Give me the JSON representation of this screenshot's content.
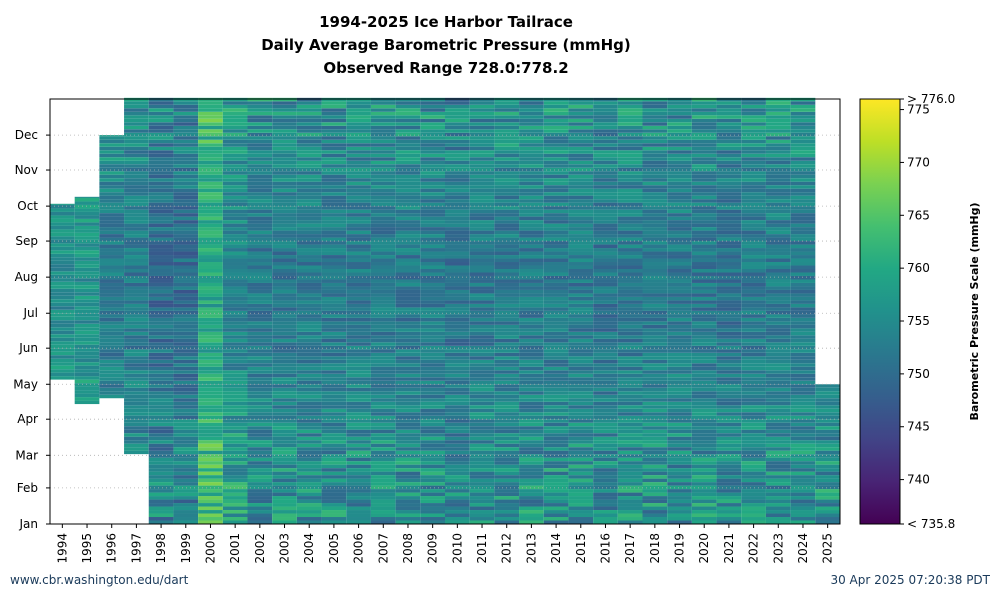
{
  "chart_data": {
    "type": "heatmap",
    "title": "1994-2025 Ice Harbor Tailrace",
    "subtitle": "Daily Average Barometric Pressure (mmHg)",
    "subtitle2": "Observed Range 728.0:778.2",
    "x_categories": [
      "1994",
      "1995",
      "1996",
      "1997",
      "1998",
      "1999",
      "2000",
      "2001",
      "2002",
      "2003",
      "2004",
      "2005",
      "2006",
      "2007",
      "2008",
      "2009",
      "2010",
      "2011",
      "2012",
      "2013",
      "2014",
      "2015",
      "2016",
      "2017",
      "2018",
      "2019",
      "2020",
      "2021",
      "2022",
      "2023",
      "2024",
      "2025"
    ],
    "y_ticks": [
      "Jan",
      "Feb",
      "Mar",
      "Apr",
      "May",
      "Jun",
      "Jul",
      "Aug",
      "Sep",
      "Oct",
      "Nov",
      "Dec"
    ],
    "y_range_days": [
      1,
      366
    ],
    "grid": "horizontal dotted at month ticks",
    "colormap": "viridis",
    "colorbar": {
      "label": "Barometric Pressure Scale (mmHg)",
      "vmin": 735.8,
      "vmax": 776.0,
      "ticks": [
        740,
        745,
        750,
        755,
        760,
        765,
        770,
        775
      ],
      "min_label": "< 735.8",
      "max_label": "> 776.0"
    },
    "data_coverage_doy": [
      {
        "year": "1994",
        "start": 125,
        "end": 275,
        "mean": 757
      },
      {
        "year": "1995",
        "start": 104,
        "end": 281,
        "mean": 758
      },
      {
        "year": "1996",
        "start": 109,
        "end": 334,
        "mean": 754
      },
      {
        "year": "1997",
        "start": 61,
        "end": 366,
        "mean": 754
      },
      {
        "year": "1998",
        "start": 1,
        "end": 366,
        "mean": 752
      },
      {
        "year": "1999",
        "start": 1,
        "end": 366,
        "mean": 752
      },
      {
        "year": "2000",
        "start": 1,
        "end": 366,
        "mean": 761
      },
      {
        "year": "2001",
        "start": 1,
        "end": 366,
        "mean": 756
      },
      {
        "year": "2002",
        "start": 1,
        "end": 366,
        "mean": 754
      },
      {
        "year": "2003",
        "start": 1,
        "end": 366,
        "mean": 754
      },
      {
        "year": "2004",
        "start": 1,
        "end": 366,
        "mean": 754
      },
      {
        "year": "2005",
        "start": 1,
        "end": 366,
        "mean": 754
      },
      {
        "year": "2006",
        "start": 1,
        "end": 366,
        "mean": 754
      },
      {
        "year": "2007",
        "start": 1,
        "end": 366,
        "mean": 754
      },
      {
        "year": "2008",
        "start": 1,
        "end": 366,
        "mean": 754
      },
      {
        "year": "2009",
        "start": 1,
        "end": 366,
        "mean": 754
      },
      {
        "year": "2010",
        "start": 1,
        "end": 366,
        "mean": 753
      },
      {
        "year": "2011",
        "start": 1,
        "end": 366,
        "mean": 754
      },
      {
        "year": "2012",
        "start": 1,
        "end": 366,
        "mean": 754
      },
      {
        "year": "2013",
        "start": 1,
        "end": 366,
        "mean": 754
      },
      {
        "year": "2014",
        "start": 1,
        "end": 366,
        "mean": 754
      },
      {
        "year": "2015",
        "start": 1,
        "end": 366,
        "mean": 754
      },
      {
        "year": "2016",
        "start": 1,
        "end": 366,
        "mean": 753
      },
      {
        "year": "2017",
        "start": 1,
        "end": 366,
        "mean": 754
      },
      {
        "year": "2018",
        "start": 1,
        "end": 366,
        "mean": 754
      },
      {
        "year": "2019",
        "start": 1,
        "end": 366,
        "mean": 754
      },
      {
        "year": "2020",
        "start": 1,
        "end": 366,
        "mean": 754
      },
      {
        "year": "2021",
        "start": 1,
        "end": 366,
        "mean": 753
      },
      {
        "year": "2022",
        "start": 1,
        "end": 366,
        "mean": 754
      },
      {
        "year": "2023",
        "start": 1,
        "end": 366,
        "mean": 754
      },
      {
        "year": "2024",
        "start": 1,
        "end": 366,
        "mean": 754
      },
      {
        "year": "2025",
        "start": 1,
        "end": 120,
        "mean": 754
      }
    ]
  },
  "footer": {
    "left": "www.cbr.washington.edu/dart",
    "right": "30 Apr 2025 07:20:38 PDT"
  }
}
